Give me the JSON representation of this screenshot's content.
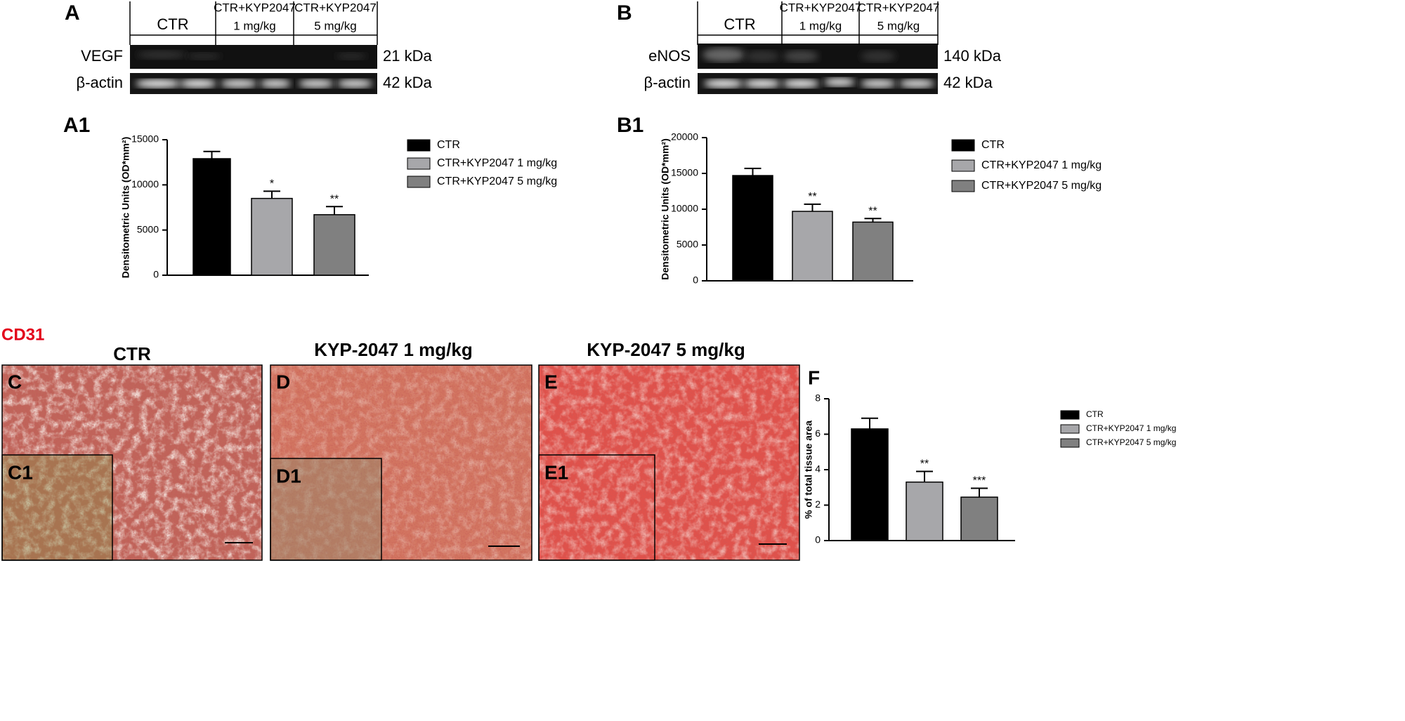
{
  "blots": [
    {
      "label": "A",
      "headers": [
        [
          "CTR"
        ],
        [
          "CTR+KYP2047",
          "1 mg/kg"
        ],
        [
          "CTR+KYP2047",
          "5 mg/kg"
        ]
      ],
      "rows": [
        {
          "name": "VEGF",
          "size": "21 kDa"
        },
        {
          "name": "β-actin",
          "size": "42 kDa"
        }
      ]
    },
    {
      "label": "B",
      "headers": [
        [
          "CTR"
        ],
        [
          "CTR+KYP2047",
          "1 mg/kg"
        ],
        [
          "CTR+KYP2047",
          "5 mg/kg"
        ]
      ],
      "rows": [
        {
          "name": "eNOS",
          "size": "140 kDa"
        },
        {
          "name": "β-actin",
          "size": "42 kDa"
        }
      ]
    }
  ],
  "histology": {
    "stain": "CD31",
    "panels": [
      {
        "label": "C",
        "title": "CTR",
        "inset": "C1"
      },
      {
        "label": "D",
        "title": "KYP-2047 1 mg/kg",
        "inset": "D1"
      },
      {
        "label": "E",
        "title": "KYP-2047 5 mg/kg",
        "inset": "E1"
      }
    ]
  },
  "chart_data": [
    {
      "type": "bar",
      "label": "A1",
      "ylabel": "Densitometric Units (OD*mm²)",
      "ylim": [
        0,
        15000
      ],
      "yticks": [
        0,
        5000,
        10000,
        15000
      ],
      "series": [
        {
          "name": "CTR",
          "color": "#000000",
          "values": [
            12900
          ],
          "errors": [
            800
          ]
        },
        {
          "name": "CTR+KYP2047  1 mg/kg",
          "color": "#a7a7aa",
          "values": [
            8500
          ],
          "errors": [
            800
          ],
          "annotation": "*"
        },
        {
          "name": "CTR+KYP2047 5 mg/kg",
          "color": "#808080",
          "values": [
            6700
          ],
          "errors": [
            900
          ],
          "annotation": "**"
        }
      ]
    },
    {
      "type": "bar",
      "label": "B1",
      "ylabel": "Densitometric Units (OD*mm²)",
      "ylim": [
        0,
        20000
      ],
      "yticks": [
        0,
        5000,
        10000,
        15000,
        20000
      ],
      "series": [
        {
          "name": "CTR",
          "color": "#000000",
          "values": [
            14700
          ],
          "errors": [
            1000
          ]
        },
        {
          "name": "CTR+KYP2047  1 mg/kg",
          "color": "#a7a7aa",
          "values": [
            9700
          ],
          "errors": [
            1000
          ],
          "annotation": "**"
        },
        {
          "name": "CTR+KYP2047 5 mg/kg",
          "color": "#808080",
          "values": [
            8200
          ],
          "errors": [
            500
          ],
          "annotation": "**"
        }
      ]
    },
    {
      "type": "bar",
      "label": "F",
      "ylabel": "% of total tissue area",
      "ylim": [
        0,
        8
      ],
      "yticks": [
        0,
        2,
        4,
        6,
        8
      ],
      "series": [
        {
          "name": "CTR",
          "color": "#000000",
          "values": [
            6.3
          ],
          "errors": [
            0.6
          ]
        },
        {
          "name": "CTR+KYP2047 1 mg/kg",
          "color": "#a7a7aa",
          "values": [
            3.3
          ],
          "errors": [
            0.6
          ],
          "annotation": "**"
        },
        {
          "name": "CTR+KYP2047 5 mg/kg",
          "color": "#808080",
          "values": [
            2.45
          ],
          "errors": [
            0.5
          ],
          "annotation": "***"
        }
      ]
    }
  ]
}
